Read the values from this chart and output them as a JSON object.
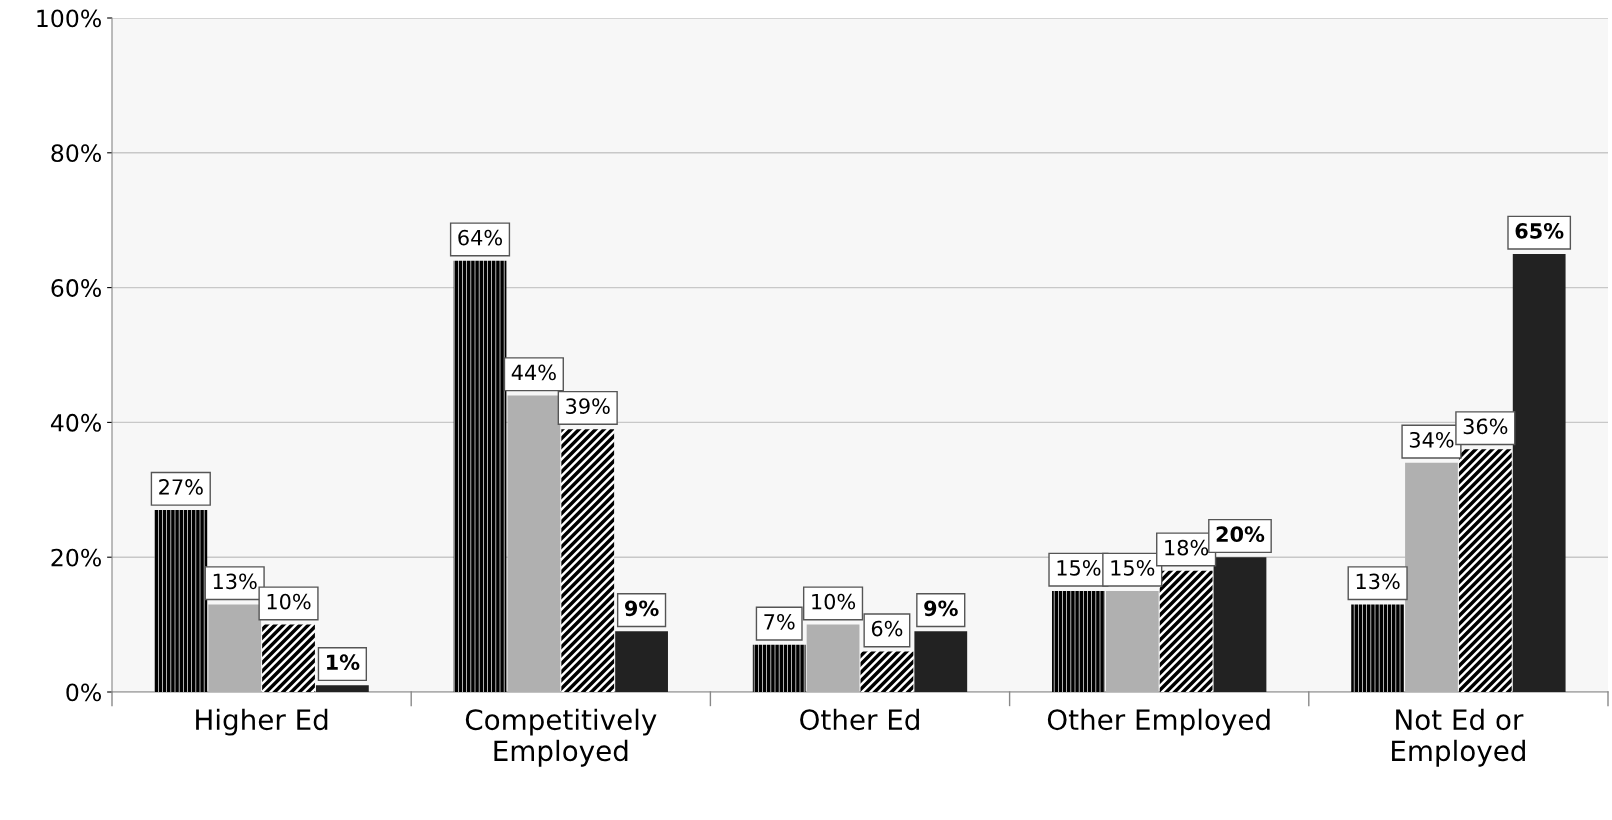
{
  "chart_data": {
    "type": "bar",
    "categories": [
      "Higher Ed",
      "Competitively\nEmployed",
      "Other Ed",
      "Other Employed",
      "Not Ed or\nEmployed"
    ],
    "series": [
      {
        "color": "#000000",
        "values": [
          27,
          64,
          7,
          15,
          13
        ],
        "value_labels": [
          "27%",
          "64%",
          "7%",
          "15%",
          "13%"
        ]
      },
      {
        "color": "#b0b0b0",
        "values": [
          13,
          44,
          10,
          15,
          34
        ],
        "value_labels": [
          "13%",
          "44%",
          "10%",
          "15%",
          "34%"
        ]
      },
      {
        "color": "#000000",
        "values": [
          10,
          39,
          6,
          18,
          36
        ],
        "value_labels": [
          "10%",
          "39%",
          "6%",
          "18%",
          "36%"
        ]
      },
      {
        "color": "#222222",
        "values": [
          1,
          9,
          9,
          20,
          65
        ],
        "value_labels": [
          "1%",
          "9%",
          "9%",
          "20%",
          "65%"
        ]
      }
    ],
    "ylim": [
      0,
      100
    ],
    "yticks": [
      {
        "value": 0,
        "label": "0%"
      },
      {
        "value": 20,
        "label": "20%"
      },
      {
        "value": 40,
        "label": "40%"
      },
      {
        "value": 60,
        "label": "60%"
      },
      {
        "value": 80,
        "label": "80%"
      },
      {
        "value": 100,
        "label": "100%"
      }
    ],
    "grid": "y"
  }
}
